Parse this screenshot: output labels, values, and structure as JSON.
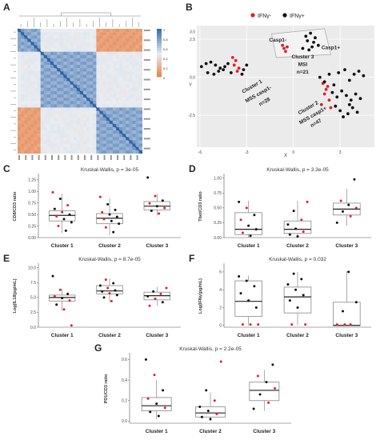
{
  "colors": {
    "ifn_neg": "#e0202a",
    "ifn_pos": "#111111",
    "box_fill": "#ffffff",
    "box_stroke": "#888888",
    "median": "#222222"
  },
  "panel_labels": [
    "A",
    "B",
    "C",
    "D",
    "E",
    "F",
    "G"
  ],
  "chart_data": [
    {
      "panel": "A",
      "type": "heatmap",
      "description_colors": [
        "#3a6fb0",
        "#e9edf2",
        "#e9793a"
      ],
      "legend_ticks": [
        "1",
        "0.8",
        "0.6",
        "0.4",
        "0.2",
        "0"
      ]
    },
    {
      "panel": "B",
      "type": "scatter",
      "xlabel": "X",
      "ylabel": "Y",
      "xlim": [
        -6.2,
        5.2
      ],
      "ylim": [
        -4.6,
        3.4
      ],
      "xticks": [
        "-6",
        "-3",
        "0",
        "3"
      ],
      "yticks": [
        "3.0",
        "2.5",
        "0.0",
        "-2.5"
      ],
      "legend": [
        "IFNγ-",
        "IFNγ+"
      ],
      "annotations": [
        "Casp1-",
        "Casp1+",
        "Cluster 3",
        "MSI",
        "n=21",
        "Cluster 1",
        "MSS casp1-",
        "n=28",
        "Cluster 2",
        "MSS casp1+",
        "n=47"
      ],
      "series": [
        {
          "name": "IFNγ-",
          "x": [
            -3.9,
            -3.7,
            -3.8,
            -3.5,
            -3.6,
            -0.7,
            -0.6,
            -0.4,
            -0.5,
            1.9,
            2.1,
            2.0,
            2.3,
            2.2,
            1.8,
            2.4
          ],
          "y": [
            1.3,
            1.1,
            0.8,
            0.6,
            0.4,
            2.1,
            1.9,
            2.0,
            1.7,
            -0.4,
            -0.8,
            -1.1,
            -1.5,
            -0.6,
            -1.8,
            -2.0
          ]
        },
        {
          "name": "IFNγ+",
          "x": [
            -5.9,
            -5.6,
            -5.3,
            -5.0,
            -4.7,
            -4.4,
            -4.2,
            -3.2,
            -3.0,
            -5.5,
            -5.1,
            -4.8,
            -4.5,
            -3.3,
            -4.0,
            0.8,
            1.1,
            1.4,
            1.3,
            0.9,
            1.6,
            1.2,
            0.6,
            1.0,
            1.7,
            2.0,
            2.3,
            2.6,
            2.9,
            3.3,
            3.6,
            3.9,
            4.2,
            4.5,
            2.5,
            2.8,
            3.1,
            3.4,
            3.7,
            4.0,
            4.3,
            2.7,
            3.0,
            3.5,
            3.8,
            4.1,
            3.2,
            3.6
          ],
          "y": [
            0.7,
            0.9,
            1.0,
            0.8,
            0.6,
            0.7,
            0.9,
            0.5,
            0.8,
            0.3,
            0.2,
            0.4,
            0.5,
            0.2,
            0.3,
            2.7,
            2.9,
            2.6,
            2.3,
            2.4,
            2.1,
            2.0,
            1.9,
            1.8,
            0.0,
            -0.3,
            0.2,
            -0.5,
            0.3,
            0.5,
            -0.2,
            0.2,
            0.4,
            0.1,
            -1.0,
            -1.3,
            -0.9,
            -1.2,
            -1.5,
            -1.1,
            -1.4,
            -1.9,
            -2.2,
            -2.4,
            -2.0,
            -2.3,
            -2.6,
            -1.8
          ]
        }
      ]
    },
    {
      "panel": "C",
      "type": "box",
      "title": "Kruskal-Wallis, p = 3e-05",
      "ylabel": "CD8/CD3 ratio",
      "categories": [
        "Cluster 1",
        "Cluster 2",
        "Cluster 3"
      ],
      "ylim": [
        0,
        1.35
      ],
      "yticks": [
        0.0,
        0.25,
        0.5,
        0.75,
        1.0,
        1.25
      ],
      "ytick_labels": [
        "0.00",
        "0.25",
        "0.50",
        "0.75",
        "1.00",
        "1.25"
      ],
      "boxes": [
        {
          "min": 0.1,
          "q1": 0.36,
          "median": 0.48,
          "q3": 0.58,
          "max": 0.95
        },
        {
          "min": 0.05,
          "q1": 0.3,
          "median": 0.42,
          "q3": 0.52,
          "max": 0.85
        },
        {
          "min": 0.48,
          "q1": 0.6,
          "median": 0.68,
          "q3": 0.78,
          "max": 0.95
        }
      ],
      "points": [
        {
          "c": 0,
          "y": 0.98,
          "s": "neg"
        },
        {
          "c": 0,
          "y": 0.84,
          "s": "pos"
        },
        {
          "c": 0,
          "y": 0.7,
          "s": "neg"
        },
        {
          "c": 0,
          "y": 0.62,
          "s": "pos"
        },
        {
          "c": 0,
          "y": 0.55,
          "s": "neg"
        },
        {
          "c": 0,
          "y": 0.5,
          "s": "pos"
        },
        {
          "c": 0,
          "y": 0.46,
          "s": "neg"
        },
        {
          "c": 0,
          "y": 0.4,
          "s": "pos"
        },
        {
          "c": 0,
          "y": 0.33,
          "s": "pos"
        },
        {
          "c": 0,
          "y": 0.25,
          "s": "neg"
        },
        {
          "c": 0,
          "y": 0.15,
          "s": "pos"
        },
        {
          "c": 1,
          "y": 0.88,
          "s": "neg"
        },
        {
          "c": 1,
          "y": 0.72,
          "s": "pos"
        },
        {
          "c": 1,
          "y": 0.6,
          "s": "pos"
        },
        {
          "c": 1,
          "y": 0.55,
          "s": "neg"
        },
        {
          "c": 1,
          "y": 0.5,
          "s": "pos"
        },
        {
          "c": 1,
          "y": 0.45,
          "s": "pos"
        },
        {
          "c": 1,
          "y": 0.4,
          "s": "neg"
        },
        {
          "c": 1,
          "y": 0.36,
          "s": "pos"
        },
        {
          "c": 1,
          "y": 0.3,
          "s": "pos"
        },
        {
          "c": 1,
          "y": 0.22,
          "s": "neg"
        },
        {
          "c": 1,
          "y": 0.12,
          "s": "pos"
        },
        {
          "c": 2,
          "y": 1.3,
          "s": "pos"
        },
        {
          "c": 2,
          "y": 0.9,
          "s": "neg"
        },
        {
          "c": 2,
          "y": 0.8,
          "s": "pos"
        },
        {
          "c": 2,
          "y": 0.74,
          "s": "neg"
        },
        {
          "c": 2,
          "y": 0.68,
          "s": "pos"
        },
        {
          "c": 2,
          "y": 0.64,
          "s": "neg"
        },
        {
          "c": 2,
          "y": 0.58,
          "s": "pos"
        },
        {
          "c": 2,
          "y": 0.52,
          "s": "neg"
        }
      ]
    },
    {
      "panel": "D",
      "type": "box",
      "title": "Kruskal-Wallis, p = 3.3e-05",
      "ylabel": "Tbet/CD3 ratio",
      "categories": [
        "Cluster 1",
        "Cluster 2",
        "Cluster 3"
      ],
      "ylim": [
        0,
        1.05
      ],
      "yticks": [
        0.0,
        0.25,
        0.5,
        0.75,
        1.0
      ],
      "ytick_labels": [
        "0.00",
        "0.25",
        "0.50",
        "0.75",
        "1.00"
      ],
      "boxes": [
        {
          "min": 0.0,
          "q1": 0.05,
          "median": 0.14,
          "q3": 0.42,
          "max": 0.62
        },
        {
          "min": 0.0,
          "q1": 0.07,
          "median": 0.14,
          "q3": 0.28,
          "max": 0.62
        },
        {
          "min": 0.2,
          "q1": 0.38,
          "median": 0.48,
          "q3": 0.58,
          "max": 0.82
        }
      ],
      "points": [
        {
          "c": 0,
          "y": 0.6,
          "s": "pos"
        },
        {
          "c": 0,
          "y": 0.5,
          "s": "neg"
        },
        {
          "c": 0,
          "y": 0.38,
          "s": "pos"
        },
        {
          "c": 0,
          "y": 0.3,
          "s": "neg"
        },
        {
          "c": 0,
          "y": 0.2,
          "s": "pos"
        },
        {
          "c": 0,
          "y": 0.14,
          "s": "pos"
        },
        {
          "c": 0,
          "y": 0.08,
          "s": "neg"
        },
        {
          "c": 0,
          "y": 0.03,
          "s": "pos"
        },
        {
          "c": 1,
          "y": 0.6,
          "s": "neg"
        },
        {
          "c": 1,
          "y": 0.45,
          "s": "pos"
        },
        {
          "c": 1,
          "y": 0.3,
          "s": "neg"
        },
        {
          "c": 1,
          "y": 0.22,
          "s": "pos"
        },
        {
          "c": 1,
          "y": 0.15,
          "s": "pos"
        },
        {
          "c": 1,
          "y": 0.1,
          "s": "neg"
        },
        {
          "c": 1,
          "y": 0.05,
          "s": "pos"
        },
        {
          "c": 1,
          "y": 0.02,
          "s": "pos"
        },
        {
          "c": 2,
          "y": 0.98,
          "s": "pos"
        },
        {
          "c": 2,
          "y": 0.62,
          "s": "neg"
        },
        {
          "c": 2,
          "y": 0.55,
          "s": "pos"
        },
        {
          "c": 2,
          "y": 0.5,
          "s": "neg"
        },
        {
          "c": 2,
          "y": 0.44,
          "s": "pos"
        },
        {
          "c": 2,
          "y": 0.36,
          "s": "neg"
        },
        {
          "c": 2,
          "y": 0.25,
          "s": "pos"
        }
      ]
    },
    {
      "panel": "E",
      "type": "box",
      "title": "Kruskal-Wallis, p = 8.7e-05",
      "ylabel": "Log(IL18(pg/mL)",
      "categories": [
        "Cluster 1",
        "Cluster 2",
        "Cluster 3"
      ],
      "ylim": [
        0,
        10.5
      ],
      "yticks": [
        0.0,
        2.5,
        5.0,
        7.5,
        10.0
      ],
      "ytick_labels": [
        "0.0",
        "2.5",
        "5.0",
        "7.5",
        "10.0"
      ],
      "boxes": [
        {
          "min": 2.8,
          "q1": 4.4,
          "median": 5.0,
          "q3": 5.4,
          "max": 6.4
        },
        {
          "min": 4.2,
          "q1": 5.6,
          "median": 6.1,
          "q3": 7.0,
          "max": 8.2
        },
        {
          "min": 3.6,
          "q1": 4.6,
          "median": 5.3,
          "q3": 5.9,
          "max": 6.8
        }
      ],
      "points": [
        {
          "c": 0,
          "y": 8.6,
          "s": "pos"
        },
        {
          "c": 0,
          "y": 6.3,
          "s": "neg"
        },
        {
          "c": 0,
          "y": 5.6,
          "s": "pos"
        },
        {
          "c": 0,
          "y": 5.2,
          "s": "neg"
        },
        {
          "c": 0,
          "y": 4.9,
          "s": "pos"
        },
        {
          "c": 0,
          "y": 4.5,
          "s": "neg"
        },
        {
          "c": 0,
          "y": 3.8,
          "s": "pos"
        },
        {
          "c": 0,
          "y": 3.0,
          "s": "neg"
        },
        {
          "c": 0,
          "y": 0.3,
          "s": "neg"
        },
        {
          "c": 1,
          "y": 8.0,
          "s": "neg"
        },
        {
          "c": 1,
          "y": 7.4,
          "s": "pos"
        },
        {
          "c": 1,
          "y": 7.0,
          "s": "pos"
        },
        {
          "c": 1,
          "y": 6.6,
          "s": "neg"
        },
        {
          "c": 1,
          "y": 6.2,
          "s": "pos"
        },
        {
          "c": 1,
          "y": 6.0,
          "s": "pos"
        },
        {
          "c": 1,
          "y": 5.7,
          "s": "neg"
        },
        {
          "c": 1,
          "y": 5.4,
          "s": "pos"
        },
        {
          "c": 1,
          "y": 5.0,
          "s": "pos"
        },
        {
          "c": 1,
          "y": 4.4,
          "s": "neg"
        },
        {
          "c": 2,
          "y": 6.6,
          "s": "neg"
        },
        {
          "c": 2,
          "y": 6.0,
          "s": "pos"
        },
        {
          "c": 2,
          "y": 5.6,
          "s": "neg"
        },
        {
          "c": 2,
          "y": 5.2,
          "s": "pos"
        },
        {
          "c": 2,
          "y": 4.8,
          "s": "neg"
        },
        {
          "c": 2,
          "y": 4.2,
          "s": "pos"
        },
        {
          "c": 2,
          "y": 3.6,
          "s": "neg"
        }
      ]
    },
    {
      "panel": "F",
      "type": "box",
      "title": "Kruskal-Wallis, p = 0.032",
      "ylabel": "Log(IFNγ(pg/mL)",
      "categories": [
        "Cluster 1",
        "Cluster 2",
        "Cluster 3"
      ],
      "ylim": [
        -0.2,
        6.8
      ],
      "yticks": [
        0,
        2,
        4,
        6
      ],
      "ytick_labels": [
        "0",
        "2",
        "4",
        "6"
      ],
      "boxes": [
        {
          "min": 0.0,
          "q1": 1.0,
          "median": 2.7,
          "q3": 5.0,
          "max": 5.6
        },
        {
          "min": 0.0,
          "q1": 1.4,
          "median": 3.2,
          "q3": 4.3,
          "max": 6.0
        },
        {
          "min": 0.0,
          "q1": 0.0,
          "median": 0.0,
          "q3": 2.6,
          "max": 6.1
        }
      ],
      "points": [
        {
          "c": 0,
          "y": 5.5,
          "s": "pos"
        },
        {
          "c": 0,
          "y": 5.0,
          "s": "pos"
        },
        {
          "c": 0,
          "y": 4.4,
          "s": "pos"
        },
        {
          "c": 0,
          "y": 3.6,
          "s": "pos"
        },
        {
          "c": 0,
          "y": 2.8,
          "s": "pos"
        },
        {
          "c": 0,
          "y": 2.0,
          "s": "pos"
        },
        {
          "c": 0,
          "y": 0.1,
          "s": "neg"
        },
        {
          "c": 0,
          "y": 0.1,
          "s": "neg"
        },
        {
          "c": 0,
          "y": 0.1,
          "s": "neg"
        },
        {
          "c": 1,
          "y": 5.8,
          "s": "pos"
        },
        {
          "c": 1,
          "y": 5.2,
          "s": "pos"
        },
        {
          "c": 1,
          "y": 4.6,
          "s": "pos"
        },
        {
          "c": 1,
          "y": 4.0,
          "s": "pos"
        },
        {
          "c": 1,
          "y": 3.4,
          "s": "pos"
        },
        {
          "c": 1,
          "y": 2.8,
          "s": "pos"
        },
        {
          "c": 1,
          "y": 2.0,
          "s": "pos"
        },
        {
          "c": 1,
          "y": 0.1,
          "s": "neg"
        },
        {
          "c": 1,
          "y": 0.1,
          "s": "neg"
        },
        {
          "c": 2,
          "y": 6.0,
          "s": "pos"
        },
        {
          "c": 2,
          "y": 2.6,
          "s": "pos"
        },
        {
          "c": 2,
          "y": 1.6,
          "s": "pos"
        },
        {
          "c": 2,
          "y": 0.1,
          "s": "neg"
        },
        {
          "c": 2,
          "y": 0.1,
          "s": "neg"
        },
        {
          "c": 2,
          "y": 0.1,
          "s": "neg"
        }
      ]
    },
    {
      "panel": "G",
      "type": "box",
      "title": "Kruskal-Wallis, p = 2.2e-05",
      "ylabel": "PD1/CD3 ratio",
      "categories": [
        "Cluster 1",
        "Cluster 2",
        "Cluster 3"
      ],
      "ylim": [
        -0.02,
        0.65
      ],
      "yticks": [
        0.0,
        0.2,
        0.4,
        0.6
      ],
      "ytick_labels": [
        "0.0",
        "0.2",
        "0.4",
        "0.6"
      ],
      "boxes": [
        {
          "min": 0.02,
          "q1": 0.1,
          "median": 0.15,
          "q3": 0.23,
          "max": 0.4
        },
        {
          "min": 0.0,
          "q1": 0.04,
          "median": 0.08,
          "q3": 0.14,
          "max": 0.28
        },
        {
          "min": 0.1,
          "q1": 0.2,
          "median": 0.3,
          "q3": 0.38,
          "max": 0.5
        }
      ],
      "points": [
        {
          "c": 0,
          "y": 0.6,
          "s": "pos"
        },
        {
          "c": 0,
          "y": 0.45,
          "s": "neg"
        },
        {
          "c": 0,
          "y": 0.3,
          "s": "pos"
        },
        {
          "c": 0,
          "y": 0.22,
          "s": "neg"
        },
        {
          "c": 0,
          "y": 0.17,
          "s": "pos"
        },
        {
          "c": 0,
          "y": 0.13,
          "s": "neg"
        },
        {
          "c": 0,
          "y": 0.09,
          "s": "pos"
        },
        {
          "c": 0,
          "y": 0.05,
          "s": "pos"
        },
        {
          "c": 1,
          "y": 0.58,
          "s": "neg"
        },
        {
          "c": 1,
          "y": 0.3,
          "s": "pos"
        },
        {
          "c": 1,
          "y": 0.2,
          "s": "neg"
        },
        {
          "c": 1,
          "y": 0.14,
          "s": "pos"
        },
        {
          "c": 1,
          "y": 0.1,
          "s": "pos"
        },
        {
          "c": 1,
          "y": 0.07,
          "s": "neg"
        },
        {
          "c": 1,
          "y": 0.04,
          "s": "pos"
        },
        {
          "c": 1,
          "y": 0.02,
          "s": "pos"
        },
        {
          "c": 2,
          "y": 0.55,
          "s": "pos"
        },
        {
          "c": 2,
          "y": 0.44,
          "s": "neg"
        },
        {
          "c": 2,
          "y": 0.38,
          "s": "pos"
        },
        {
          "c": 2,
          "y": 0.32,
          "s": "neg"
        },
        {
          "c": 2,
          "y": 0.26,
          "s": "pos"
        },
        {
          "c": 2,
          "y": 0.18,
          "s": "neg"
        },
        {
          "c": 2,
          "y": 0.12,
          "s": "pos"
        }
      ]
    }
  ]
}
